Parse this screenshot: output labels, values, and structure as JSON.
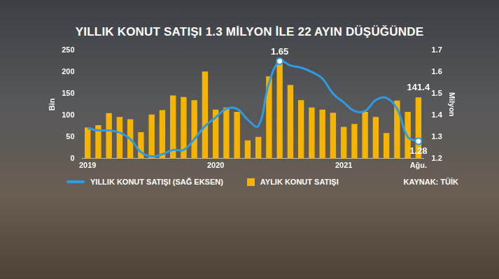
{
  "chart_data": {
    "type": "bar",
    "title": "YILLIK KONUT SATIŞI 1.3 MİLYON İLE 22 AYIN DÜŞÜĞÜNDE",
    "source": "KAYNAK: TÜİK",
    "categories": [
      "2019",
      null,
      null,
      null,
      null,
      null,
      null,
      null,
      null,
      null,
      null,
      null,
      "2020",
      null,
      null,
      null,
      null,
      null,
      null,
      null,
      null,
      null,
      null,
      null,
      "2021",
      null,
      null,
      null,
      null,
      null,
      null,
      "Ağu."
    ],
    "series": [
      {
        "name": "YILLIK KONUT SATIŞI (SAĞ EKSEN)",
        "type": "line",
        "color": "#2e9be3",
        "axis": "y2",
        "marker": "circle",
        "values": [
          1.34,
          1.33,
          1.33,
          1.32,
          1.29,
          1.23,
          1.21,
          1.22,
          1.24,
          1.24,
          1.29,
          1.35,
          1.39,
          1.43,
          1.43,
          1.38,
          1.35,
          1.55,
          1.65,
          1.63,
          1.62,
          1.6,
          1.57,
          1.5,
          1.46,
          1.42,
          1.42,
          1.47,
          1.48,
          1.43,
          1.3,
          1.28
        ]
      },
      {
        "name": "AYLIK KONUT SATIŞI",
        "type": "bar",
        "color": "#f5b400",
        "values": [
          72,
          77,
          105,
          96,
          91,
          61,
          102,
          112,
          146,
          142,
          135,
          201,
          113,
          118,
          108,
          42,
          50,
          190,
          229,
          170,
          135,
          118,
          113,
          106,
          73,
          80,
          108,
          96,
          59,
          134,
          108,
          141.4
        ]
      }
    ],
    "ylabel": "Bin",
    "y2label": "Milyon",
    "ylim": [
      0,
      250
    ],
    "yticks": [
      0,
      50,
      100,
      150,
      200,
      250
    ],
    "y2lim": [
      1.2,
      1.7
    ],
    "y2ticks": [
      1.2,
      1.3,
      1.4,
      1.5,
      1.6,
      1.7
    ],
    "annotations": [
      {
        "text": "1.65",
        "series": "YILLIK KONUT SATIŞI (SAĞ EKSEN)",
        "value": 1.65
      },
      {
        "text": "141.4",
        "series": "AYLIK KONUT SATIŞI",
        "value": 141.4
      },
      {
        "text": "1.28",
        "series": "YILLIK KONUT SATIŞI (SAĞ EKSEN)",
        "value": 1.28
      }
    ],
    "legend": "bottom",
    "grid": false
  }
}
